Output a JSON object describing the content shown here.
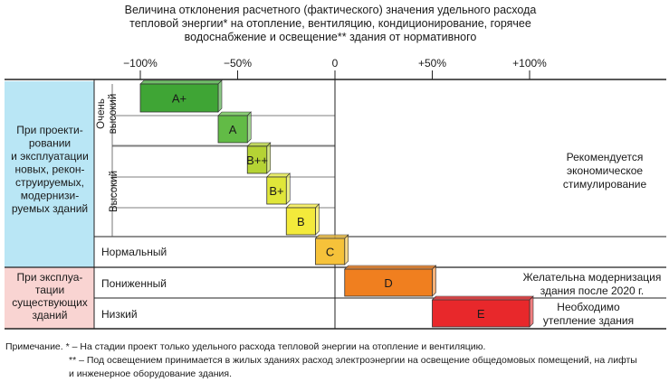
{
  "title_lines": [
    "Величина отклонения расчетного (фактического) значения удельного расхода",
    "тепловой энергии* на отопление, вентиляцию, кондиционирование, горячее",
    "водоснабжение и освещение** здания от нормативного"
  ],
  "chart_data": {
    "type": "bar",
    "xlim": [
      -100,
      100
    ],
    "ticks": [
      {
        "value": -100,
        "label": "−100%"
      },
      {
        "value": -50,
        "label": "−50%"
      },
      {
        "value": 0,
        "label": "0"
      },
      {
        "value": 50,
        "label": "+50%"
      },
      {
        "value": 100,
        "label": "+100%"
      }
    ],
    "row_groups": [
      {
        "label_lines": [
          "При проекти-",
          "ровании",
          "и эксплуатации",
          "новых, рекон-",
          "струируемых,",
          "модернизи-",
          "руемых зданий"
        ],
        "color": "#b9e6f5"
      },
      {
        "label_lines": [
          "При эксплуа-",
          "тации",
          "существующих",
          "зданий"
        ],
        "color": "#f9d4d2"
      }
    ],
    "levels": [
      {
        "lines": [
          "Очень",
          "высокий"
        ],
        "vertical": true
      },
      {
        "lines": [
          "Высокий"
        ],
        "vertical": true
      },
      {
        "lines": [
          "Нормальный"
        ],
        "vertical": false
      },
      {
        "lines": [
          "Пониженный"
        ],
        "vertical": false
      },
      {
        "lines": [
          "Низкий"
        ],
        "vertical": false
      }
    ],
    "bars": [
      {
        "label": "A+",
        "from": -100,
        "to": -60,
        "color": "#3fa535"
      },
      {
        "label": "A",
        "from": -60,
        "to": -45,
        "color": "#62bb46"
      },
      {
        "label": "B++",
        "from": -45,
        "to": -35,
        "color": "#b5d334"
      },
      {
        "label": "B+",
        "from": -35,
        "to": -25,
        "color": "#e0e63a"
      },
      {
        "label": "B",
        "from": -25,
        "to": -10,
        "color": "#f3ea3b"
      },
      {
        "label": "C",
        "from": -10,
        "to": 5,
        "color": "#f6c23a"
      },
      {
        "label": "D",
        "from": 5,
        "to": 50,
        "color": "#f07f1f"
      },
      {
        "label": "E",
        "from": 50,
        "to": 100,
        "color": "#e8282b"
      }
    ],
    "annotations": [
      {
        "lines": [
          "Рекомендуется",
          "экономическое",
          "стимулирование"
        ]
      },
      {
        "lines": [
          "Желательна модернизация",
          "здания после 2020 г."
        ]
      },
      {
        "lines": [
          "Необходимо",
          "утепление здания"
        ]
      }
    ]
  },
  "notes": {
    "line1": "Примечание.  * – На стадии проект только удельного расхода тепловой энергии на отопление и вентиляцию.",
    "line2": "** – Под освещением принимается в жилых зданиях расход электроэнергии на освещение общедомовых помещений, на лифты",
    "line3": "и инженерное оборудование здания."
  }
}
